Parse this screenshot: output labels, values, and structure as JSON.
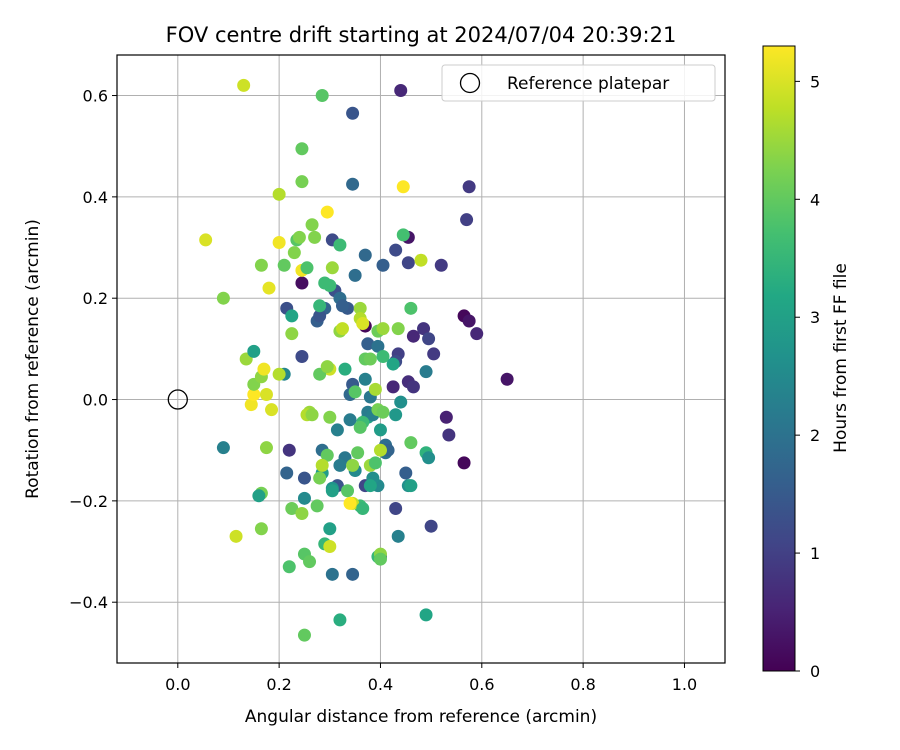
{
  "chart_data": {
    "type": "scatter",
    "title": "FOV centre drift starting at 2024/07/04 20:39:21",
    "xlabel": "Angular distance from reference (arcmin)",
    "ylabel": "Rotation from reference (arcmin)",
    "xlim": [
      -0.12,
      1.08
    ],
    "ylim": [
      -0.52,
      0.68
    ],
    "x_ticks": [
      "0.0",
      "0.2",
      "0.4",
      "0.6",
      "0.8",
      "1.0"
    ],
    "y_ticks": [
      "0.6",
      "0.4",
      "0.2",
      "0.0",
      "−0.2",
      "−0.4"
    ],
    "grid": true,
    "legend": {
      "location": "upper right",
      "entries": [
        "Reference platepar"
      ]
    },
    "colorbar": {
      "label": "Hours from first FF file",
      "range": [
        0,
        5.3
      ],
      "ticks": [
        "0",
        "1",
        "2",
        "3",
        "4",
        "5"
      ],
      "colormap": "viridis"
    },
    "reference_point": {
      "x": 0.0,
      "y": 0.0
    },
    "points": [
      [
        0.44,
        0.61,
        0.6
      ],
      [
        0.345,
        0.565,
        1.4
      ],
      [
        0.575,
        0.42,
        0.9
      ],
      [
        0.345,
        0.425,
        1.8
      ],
      [
        0.57,
        0.355,
        1.0
      ],
      [
        0.455,
        0.32,
        0.3
      ],
      [
        0.43,
        0.295,
        1.2
      ],
      [
        0.52,
        0.265,
        0.9
      ],
      [
        0.455,
        0.27,
        1.1
      ],
      [
        0.405,
        0.265,
        1.6
      ],
      [
        0.37,
        0.285,
        1.8
      ],
      [
        0.35,
        0.245,
        1.9
      ],
      [
        0.305,
        0.315,
        1.2
      ],
      [
        0.31,
        0.215,
        1.3
      ],
      [
        0.215,
        0.18,
        1.3
      ],
      [
        0.245,
        0.23,
        0.2
      ],
      [
        0.565,
        0.165,
        0.1
      ],
      [
        0.575,
        0.155,
        0.3
      ],
      [
        0.59,
        0.13,
        0.6
      ],
      [
        0.485,
        0.14,
        0.8
      ],
      [
        0.465,
        0.125,
        0.6
      ],
      [
        0.495,
        0.12,
        1.1
      ],
      [
        0.505,
        0.09,
        0.9
      ],
      [
        0.435,
        0.09,
        1.0
      ],
      [
        0.43,
        0.075,
        1.2
      ],
      [
        0.375,
        0.11,
        1.6
      ],
      [
        0.395,
        0.105,
        2.0
      ],
      [
        0.37,
        0.145,
        0.1
      ],
      [
        0.335,
        0.18,
        1.5
      ],
      [
        0.32,
        0.2,
        1.9
      ],
      [
        0.325,
        0.185,
        1.6
      ],
      [
        0.29,
        0.18,
        1.7
      ],
      [
        0.275,
        0.155,
        1.6
      ],
      [
        0.28,
        0.165,
        1.4
      ],
      [
        0.245,
        0.085,
        1.2
      ],
      [
        0.21,
        0.05,
        2.4
      ],
      [
        0.65,
        0.04,
        0.3
      ],
      [
        0.455,
        0.035,
        0.7
      ],
      [
        0.465,
        0.025,
        0.8
      ],
      [
        0.425,
        0.025,
        0.6
      ],
      [
        0.49,
        0.055,
        2.2
      ],
      [
        0.345,
        0.03,
        1.5
      ],
      [
        0.37,
        0.04,
        2.3
      ],
      [
        0.34,
        0.01,
        1.8
      ],
      [
        0.38,
        0.005,
        2.1
      ],
      [
        0.53,
        -0.035,
        0.5
      ],
      [
        0.535,
        -0.07,
        0.8
      ],
      [
        0.565,
        -0.125,
        0.1
      ],
      [
        0.49,
        -0.105,
        3.4
      ],
      [
        0.495,
        -0.115,
        2.6
      ],
      [
        0.46,
        -0.085,
        4.0
      ],
      [
        0.44,
        -0.005,
        2.6
      ],
      [
        0.43,
        -0.03,
        2.8
      ],
      [
        0.41,
        -0.09,
        1.9
      ],
      [
        0.41,
        -0.105,
        2.0
      ],
      [
        0.415,
        -0.1,
        1.7
      ],
      [
        0.4,
        -0.06,
        2.9
      ],
      [
        0.375,
        -0.035,
        3.0
      ],
      [
        0.375,
        -0.025,
        2.2
      ],
      [
        0.385,
        -0.03,
        2.3
      ],
      [
        0.34,
        -0.04,
        2.2
      ],
      [
        0.315,
        -0.06,
        2.3
      ],
      [
        0.33,
        -0.115,
        2.1
      ],
      [
        0.32,
        -0.13,
        2.2
      ],
      [
        0.35,
        -0.14,
        2.5
      ],
      [
        0.285,
        -0.1,
        1.9
      ],
      [
        0.285,
        -0.145,
        2.9
      ],
      [
        0.315,
        -0.17,
        1.4
      ],
      [
        0.305,
        -0.175,
        2.7
      ],
      [
        0.22,
        -0.1,
        0.8
      ],
      [
        0.215,
        -0.145,
        1.7
      ],
      [
        0.25,
        -0.155,
        1.4
      ],
      [
        0.25,
        -0.195,
        2.5
      ],
      [
        0.45,
        -0.145,
        1.6
      ],
      [
        0.455,
        -0.17,
        2.6
      ],
      [
        0.46,
        -0.17,
        3.0
      ],
      [
        0.395,
        -0.17,
        2.5
      ],
      [
        0.37,
        -0.17,
        1.1
      ],
      [
        0.385,
        -0.155,
        2.6
      ],
      [
        0.43,
        -0.215,
        1.1
      ],
      [
        0.435,
        -0.27,
        2.3
      ],
      [
        0.5,
        -0.25,
        1.1
      ],
      [
        0.4,
        -0.31,
        1.2
      ],
      [
        0.395,
        -0.31,
        3.5
      ],
      [
        0.36,
        -0.21,
        3.6
      ],
      [
        0.345,
        -0.205,
        4.8
      ],
      [
        0.3,
        -0.255,
        3.0
      ],
      [
        0.29,
        -0.285,
        3.5
      ],
      [
        0.25,
        -0.305,
        3.9
      ],
      [
        0.26,
        -0.32,
        4.0
      ],
      [
        0.305,
        -0.345,
        2.0
      ],
      [
        0.345,
        -0.345,
        1.7
      ],
      [
        0.32,
        -0.435,
        3.3
      ],
      [
        0.25,
        -0.465,
        4.0
      ],
      [
        0.49,
        -0.425,
        3.1
      ],
      [
        0.22,
        -0.33,
        3.8
      ],
      [
        0.225,
        -0.215,
        4.1
      ],
      [
        0.245,
        -0.225,
        4.4
      ],
      [
        0.165,
        -0.185,
        4.2
      ],
      [
        0.16,
        -0.19,
        3.0
      ],
      [
        0.165,
        -0.255,
        4.3
      ],
      [
        0.115,
        -0.27,
        4.9
      ],
      [
        0.09,
        -0.095,
        2.3
      ],
      [
        0.175,
        -0.095,
        4.4
      ],
      [
        0.185,
        -0.02,
        5.0
      ],
      [
        0.145,
        -0.01,
        5.2
      ],
      [
        0.15,
        0.01,
        5.3
      ],
      [
        0.175,
        0.01,
        5.0
      ],
      [
        0.15,
        0.03,
        4.3
      ],
      [
        0.165,
        0.045,
        4.4
      ],
      [
        0.17,
        0.06,
        5.2
      ],
      [
        0.2,
        0.05,
        4.7
      ],
      [
        0.135,
        0.08,
        4.5
      ],
      [
        0.15,
        0.095,
        3.0
      ],
      [
        0.225,
        0.13,
        4.4
      ],
      [
        0.225,
        0.165,
        3.1
      ],
      [
        0.09,
        0.2,
        4.3
      ],
      [
        0.18,
        0.22,
        5.1
      ],
      [
        0.165,
        0.265,
        4.3
      ],
      [
        0.21,
        0.265,
        4.0
      ],
      [
        0.23,
        0.29,
        4.3
      ],
      [
        0.235,
        0.315,
        3.9
      ],
      [
        0.24,
        0.32,
        4.3
      ],
      [
        0.2,
        0.31,
        5.2
      ],
      [
        0.245,
        0.255,
        5.2
      ],
      [
        0.255,
        0.26,
        3.8
      ],
      [
        0.265,
        0.345,
        4.3
      ],
      [
        0.27,
        0.32,
        4.3
      ],
      [
        0.295,
        0.37,
        5.3
      ],
      [
        0.305,
        0.26,
        4.5
      ],
      [
        0.32,
        0.305,
        3.6
      ],
      [
        0.055,
        0.315,
        5.0
      ],
      [
        0.2,
        0.405,
        4.7
      ],
      [
        0.245,
        0.43,
        4.2
      ],
      [
        0.245,
        0.495,
        4.0
      ],
      [
        0.285,
        0.6,
        3.9
      ],
      [
        0.13,
        0.62,
        4.9
      ],
      [
        0.445,
        0.42,
        5.3
      ],
      [
        0.445,
        0.325,
        3.7
      ],
      [
        0.48,
        0.275,
        4.8
      ],
      [
        0.46,
        0.18,
        3.8
      ],
      [
        0.435,
        0.14,
        4.3
      ],
      [
        0.395,
        0.135,
        4.1
      ],
      [
        0.405,
        0.14,
        4.5
      ],
      [
        0.36,
        0.18,
        4.5
      ],
      [
        0.36,
        0.16,
        4.7
      ],
      [
        0.365,
        0.15,
        5.0
      ],
      [
        0.32,
        0.135,
        4.4
      ],
      [
        0.325,
        0.14,
        4.8
      ],
      [
        0.28,
        0.185,
        3.5
      ],
      [
        0.3,
        0.225,
        3.6
      ],
      [
        0.29,
        0.23,
        3.6
      ],
      [
        0.3,
        0.06,
        4.9
      ],
      [
        0.28,
        0.05,
        4.0
      ],
      [
        0.295,
        0.065,
        4.4
      ],
      [
        0.33,
        0.06,
        3.3
      ],
      [
        0.37,
        0.08,
        4.0
      ],
      [
        0.38,
        0.08,
        4.1
      ],
      [
        0.405,
        0.085,
        3.6
      ],
      [
        0.425,
        0.07,
        3.1
      ],
      [
        0.35,
        0.015,
        3.9
      ],
      [
        0.39,
        0.02,
        4.6
      ],
      [
        0.395,
        -0.02,
        4.2
      ],
      [
        0.405,
        -0.025,
        4.1
      ],
      [
        0.365,
        -0.045,
        3.6
      ],
      [
        0.36,
        -0.055,
        3.9
      ],
      [
        0.3,
        -0.035,
        4.3
      ],
      [
        0.26,
        -0.025,
        4.5
      ],
      [
        0.255,
        -0.03,
        4.7
      ],
      [
        0.265,
        -0.03,
        4.4
      ],
      [
        0.295,
        -0.11,
        4.0
      ],
      [
        0.285,
        -0.13,
        4.7
      ],
      [
        0.355,
        -0.105,
        4.0
      ],
      [
        0.345,
        -0.13,
        4.4
      ],
      [
        0.38,
        -0.13,
        4.5
      ],
      [
        0.4,
        -0.1,
        4.7
      ],
      [
        0.39,
        -0.125,
        3.8
      ],
      [
        0.38,
        -0.17,
        3.1
      ],
      [
        0.365,
        -0.215,
        3.5
      ],
      [
        0.335,
        -0.18,
        3.9
      ],
      [
        0.305,
        -0.18,
        3.0
      ],
      [
        0.28,
        -0.155,
        4.2
      ],
      [
        0.275,
        -0.21,
        4.0
      ],
      [
        0.3,
        -0.29,
        4.9
      ],
      [
        0.34,
        -0.205,
        5.3
      ],
      [
        0.4,
        -0.305,
        4.4
      ],
      [
        0.4,
        -0.315,
        4.0
      ]
    ]
  }
}
